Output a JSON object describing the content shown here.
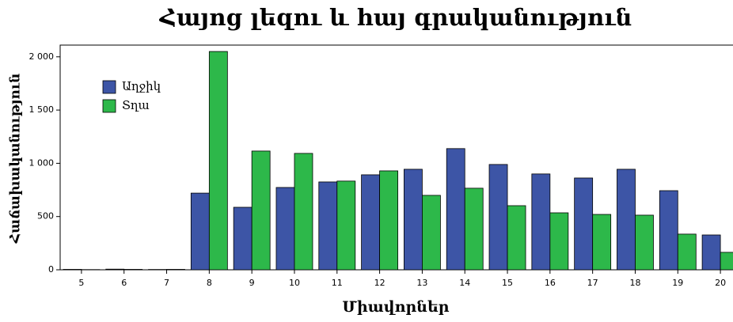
{
  "chart_data": {
    "type": "bar",
    "title": "Հայոց լեզու և հայ գրականություն",
    "x_label": "Միավորներ",
    "y_label": "Հաճախականություն",
    "categories": [
      "5",
      "6",
      "7",
      "8",
      "9",
      "10",
      "11",
      "12",
      "13",
      "14",
      "15",
      "16",
      "17",
      "18",
      "19",
      "20"
    ],
    "series": [
      {
        "name": "Աղջիկ",
        "color": "#3d55a6",
        "values": [
          4,
          6,
          3,
          720,
          587,
          773,
          825,
          892,
          944,
          1138,
          989,
          900,
          862,
          944,
          743,
          327
        ]
      },
      {
        "name": "Տղա",
        "color": "#2db84a",
        "values": [
          2,
          4,
          4,
          2050,
          1115,
          1093,
          833,
          929,
          699,
          766,
          602,
          535,
          520,
          513,
          335,
          164
        ]
      }
    ],
    "ylim": [
      0,
      2110
    ],
    "yticks": [
      0,
      500,
      {
        "value": 1000,
        "label": "1 000"
      },
      {
        "value": 1500,
        "label": "1 500"
      },
      {
        "value": 2000,
        "label": "2 000"
      }
    ],
    "legend": "upper left"
  }
}
